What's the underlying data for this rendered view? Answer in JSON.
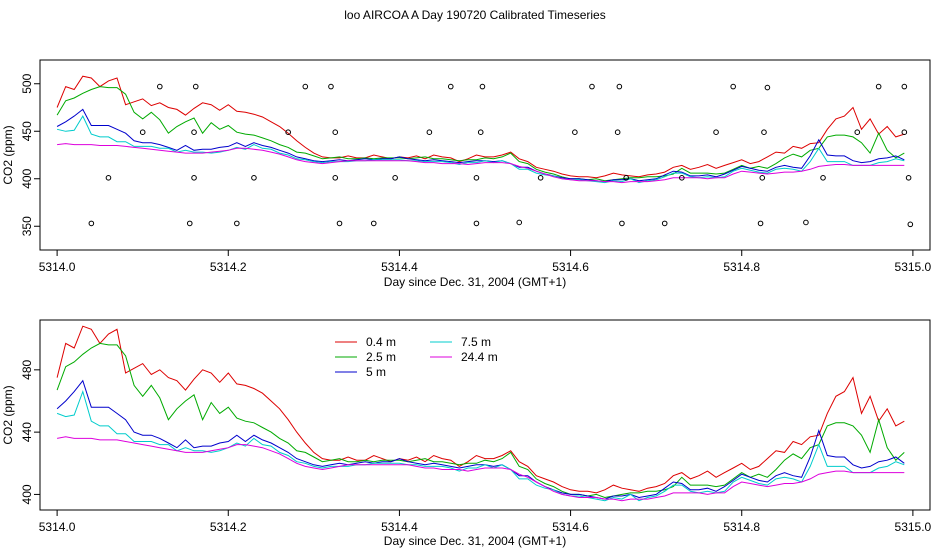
{
  "page_title": "loo AIRCOA A  Day 190720  Calibrated Timeseries",
  "chart_data": [
    {
      "type": "scatter",
      "title": "",
      "xlabel": "Day since Dec. 31, 2004 (GMT+1)",
      "ylabel": "CO2 (ppm)",
      "xlim": [
        5313.98,
        5315.02
      ],
      "ylim": [
        325,
        525
      ],
      "x_ticks": [
        "5314.0",
        "5314.2",
        "5314.4",
        "5314.6",
        "5314.8",
        "5315.0"
      ],
      "x_tick_values": [
        5314.0,
        5314.2,
        5314.4,
        5314.6,
        5314.8,
        5315.0
      ],
      "y_ticks": [
        "350",
        "400",
        "450",
        "500"
      ],
      "y_tick_values": [
        350,
        400,
        450,
        500
      ],
      "grid": false,
      "lines_x": [
        5314.0,
        5314.01,
        5314.02,
        5314.03,
        5314.04,
        5314.05,
        5314.06,
        5314.07,
        5314.08,
        5314.09,
        5314.1,
        5314.11,
        5314.12,
        5314.13,
        5314.14,
        5314.15,
        5314.16,
        5314.17,
        5314.18,
        5314.19,
        5314.2,
        5314.21,
        5314.22,
        5314.23,
        5314.24,
        5314.25,
        5314.26,
        5314.27,
        5314.28,
        5314.29,
        5314.3,
        5314.31,
        5314.32,
        5314.33,
        5314.34,
        5314.35,
        5314.36,
        5314.37,
        5314.38,
        5314.39,
        5314.4,
        5314.41,
        5314.42,
        5314.43,
        5314.44,
        5314.45,
        5314.46,
        5314.47,
        5314.48,
        5314.49,
        5314.5,
        5314.51,
        5314.52,
        5314.53,
        5314.54,
        5314.55,
        5314.56,
        5314.57,
        5314.58,
        5314.59,
        5314.6,
        5314.61,
        5314.62,
        5314.63,
        5314.64,
        5314.65,
        5314.66,
        5314.67,
        5314.68,
        5314.69,
        5314.7,
        5314.71,
        5314.72,
        5314.73,
        5314.74,
        5314.75,
        5314.76,
        5314.77,
        5314.78,
        5314.79,
        5314.8,
        5314.81,
        5314.82,
        5314.83,
        5314.84,
        5314.85,
        5314.86,
        5314.87,
        5314.88,
        5314.89,
        5314.9,
        5314.91,
        5314.92,
        5314.93,
        5314.94,
        5314.95,
        5314.96,
        5314.97,
        5314.98,
        5314.99
      ],
      "series": [
        {
          "name": "0.4 m",
          "color": "#dd0000",
          "values": [
            475,
            497,
            494,
            508,
            506,
            497,
            503,
            506,
            478,
            481,
            484,
            477,
            480,
            475,
            473,
            467,
            474,
            480,
            478,
            472,
            478,
            471,
            470,
            468,
            465,
            460,
            455,
            448,
            440,
            433,
            427,
            423,
            422,
            422,
            424,
            422,
            422,
            425,
            423,
            421,
            423,
            422,
            424,
            421,
            425,
            423,
            422,
            418,
            421,
            425,
            423,
            423,
            425,
            428,
            421,
            418,
            412,
            410,
            408,
            405,
            403,
            402,
            402,
            401,
            403,
            406,
            404,
            403,
            402,
            404,
            405,
            407,
            412,
            414,
            410,
            412,
            415,
            411,
            414,
            417,
            420,
            416,
            418,
            423,
            428,
            427,
            434,
            432,
            437,
            438,
            452,
            463,
            466,
            475,
            452,
            463,
            447,
            455,
            444,
            447
          ]
        },
        {
          "name": "2.5 m",
          "color": "#00aa00",
          "values": [
            467,
            482,
            485,
            490,
            494,
            497,
            496,
            496,
            489,
            470,
            463,
            470,
            462,
            448,
            455,
            460,
            464,
            448,
            459,
            452,
            456,
            449,
            447,
            446,
            443,
            440,
            436,
            433,
            428,
            427,
            424,
            421,
            422,
            423,
            421,
            421,
            422,
            421,
            422,
            422,
            422,
            421,
            422,
            423,
            421,
            421,
            420,
            419,
            420,
            420,
            422,
            421,
            423,
            427,
            418,
            416,
            410,
            407,
            405,
            402,
            400,
            400,
            399,
            400,
            398,
            399,
            400,
            401,
            401,
            402,
            402,
            403,
            405,
            411,
            406,
            406,
            406,
            405,
            406,
            410,
            414,
            411,
            413,
            411,
            416,
            422,
            426,
            423,
            430,
            432,
            444,
            446,
            446,
            444,
            438,
            427,
            448,
            430,
            422,
            427
          ]
        },
        {
          "name": "5 m",
          "color": "#0000cc",
          "values": [
            455,
            460,
            466,
            473,
            456,
            456,
            456,
            452,
            448,
            440,
            438,
            438,
            436,
            433,
            430,
            435,
            430,
            431,
            431,
            433,
            434,
            438,
            434,
            438,
            435,
            433,
            430,
            427,
            423,
            421,
            419,
            418,
            419,
            420,
            419,
            420,
            421,
            420,
            421,
            421,
            423,
            421,
            420,
            419,
            420,
            419,
            418,
            417,
            418,
            419,
            419,
            418,
            419,
            416,
            412,
            412,
            408,
            405,
            403,
            401,
            400,
            400,
            399,
            398,
            397,
            399,
            399,
            400,
            398,
            399,
            400,
            404,
            408,
            407,
            403,
            403,
            404,
            402,
            405,
            409,
            413,
            411,
            409,
            408,
            412,
            414,
            412,
            411,
            424,
            441,
            425,
            424,
            424,
            419,
            417,
            418,
            421,
            422,
            424,
            420
          ]
        },
        {
          "name": "7.5 m",
          "color": "#00cccc",
          "values": [
            452,
            450,
            451,
            466,
            447,
            444,
            444,
            439,
            439,
            434,
            434,
            434,
            432,
            432,
            428,
            430,
            428,
            428,
            427,
            428,
            430,
            433,
            431,
            436,
            432,
            431,
            427,
            425,
            421,
            420,
            418,
            417,
            418,
            418,
            418,
            419,
            419,
            420,
            420,
            420,
            420,
            419,
            419,
            418,
            418,
            418,
            417,
            415,
            417,
            417,
            419,
            417,
            419,
            416,
            410,
            410,
            406,
            404,
            403,
            400,
            399,
            399,
            398,
            397,
            396,
            398,
            397,
            400,
            396,
            398,
            399,
            402,
            406,
            406,
            402,
            401,
            402,
            401,
            402,
            408,
            411,
            409,
            407,
            406,
            410,
            411,
            410,
            408,
            418,
            432,
            418,
            418,
            418,
            414,
            414,
            414,
            417,
            418,
            421,
            419
          ]
        },
        {
          "name": "24.4 m",
          "color": "#dd00dd",
          "values": [
            436,
            437,
            436,
            436,
            436,
            435,
            435,
            435,
            434,
            433,
            432,
            431,
            430,
            429,
            428,
            427,
            427,
            427,
            428,
            429,
            430,
            432,
            432,
            431,
            430,
            428,
            426,
            423,
            420,
            418,
            417,
            416,
            417,
            418,
            419,
            419,
            419,
            419,
            419,
            419,
            419,
            419,
            418,
            417,
            417,
            416,
            416,
            416,
            415,
            416,
            417,
            417,
            417,
            416,
            413,
            411,
            408,
            405,
            402,
            400,
            399,
            398,
            398,
            398,
            397,
            397,
            396,
            397,
            397,
            397,
            398,
            399,
            401,
            401,
            401,
            401,
            400,
            401,
            401,
            405,
            408,
            407,
            406,
            405,
            406,
            407,
            407,
            408,
            410,
            413,
            414,
            415,
            415,
            414,
            414,
            414,
            414,
            414,
            414,
            414
          ]
        }
      ],
      "scatter_points": [
        [
          5314.04,
          353
        ],
        [
          5314.06,
          401
        ],
        [
          5314.1,
          449
        ],
        [
          5314.12,
          497
        ],
        [
          5314.155,
          353
        ],
        [
          5314.16,
          401
        ],
        [
          5314.16,
          449
        ],
        [
          5314.162,
          497
        ],
        [
          5314.21,
          353
        ],
        [
          5314.23,
          401
        ],
        [
          5314.27,
          449
        ],
        [
          5314.29,
          497
        ],
        [
          5314.32,
          497
        ],
        [
          5314.325,
          401
        ],
        [
          5314.325,
          449
        ],
        [
          5314.33,
          353
        ],
        [
          5314.37,
          353
        ],
        [
          5314.395,
          401
        ],
        [
          5314.435,
          449
        ],
        [
          5314.46,
          497
        ],
        [
          5314.49,
          353
        ],
        [
          5314.49,
          401
        ],
        [
          5314.495,
          449
        ],
        [
          5314.497,
          497
        ],
        [
          5314.54,
          354
        ],
        [
          5314.565,
          401
        ],
        [
          5314.605,
          449
        ],
        [
          5314.625,
          497
        ],
        [
          5314.655,
          449
        ],
        [
          5314.657,
          497
        ],
        [
          5314.66,
          353
        ],
        [
          5314.665,
          401
        ],
        [
          5314.71,
          353
        ],
        [
          5314.73,
          401
        ],
        [
          5314.77,
          449
        ],
        [
          5314.79,
          497
        ],
        [
          5314.822,
          353
        ],
        [
          5314.824,
          401
        ],
        [
          5314.826,
          449
        ],
        [
          5314.83,
          496
        ],
        [
          5314.875,
          354
        ],
        [
          5314.895,
          401
        ],
        [
          5314.935,
          449
        ],
        [
          5314.96,
          497
        ],
        [
          5314.99,
          497
        ],
        [
          5314.99,
          449
        ],
        [
          5314.995,
          401
        ],
        [
          5314.997,
          352
        ]
      ]
    },
    {
      "type": "line",
      "title": "",
      "xlabel": "Day since Dec. 31, 2004 (GMT+1)",
      "ylabel": "CO2 (ppm)",
      "xlim": [
        5313.98,
        5315.02
      ],
      "ylim": [
        390,
        512
      ],
      "x_ticks": [
        "5314.0",
        "5314.2",
        "5314.4",
        "5314.6",
        "5314.8",
        "5315.0"
      ],
      "x_tick_values": [
        5314.0,
        5314.2,
        5314.4,
        5314.6,
        5314.8,
        5315.0
      ],
      "y_ticks": [
        "400",
        "440",
        "480"
      ],
      "y_tick_values": [
        400,
        440,
        480
      ],
      "grid": false,
      "legend_placement": "top-center",
      "legend": [
        "0.4 m",
        "2.5 m",
        "5 m",
        "7.5 m",
        "24.4 m"
      ],
      "series_ref": "same series as chart 1"
    }
  ]
}
